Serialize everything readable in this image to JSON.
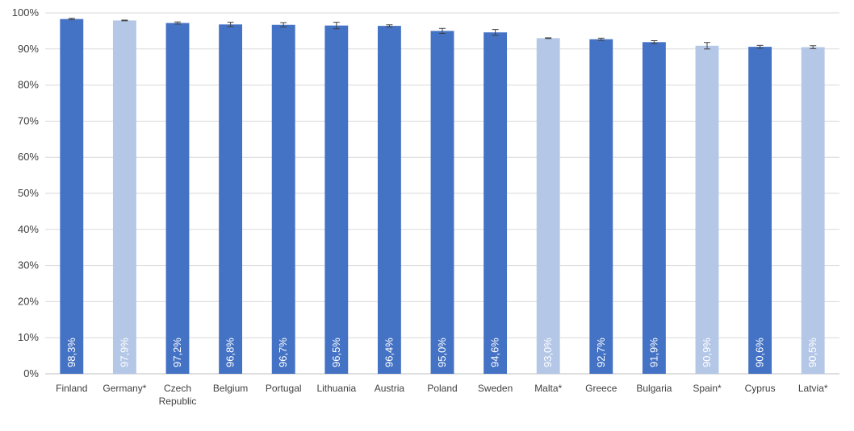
{
  "chart_data": {
    "type": "bar",
    "title": "",
    "xlabel": "",
    "ylabel": "",
    "ylim": [
      0,
      100
    ],
    "y_ticks": [
      0,
      10,
      20,
      30,
      40,
      50,
      60,
      70,
      80,
      90,
      100
    ],
    "y_tick_labels": [
      "0%",
      "10%",
      "20%",
      "30%",
      "40%",
      "50%",
      "60%",
      "70%",
      "80%",
      "90%",
      "100%"
    ],
    "grid": true,
    "legend": "none",
    "colors": {
      "standard": "#4472c4",
      "asterisk": "#b4c7e7",
      "error_bar": "#404040",
      "grid": "#d9d9d9"
    },
    "categories": [
      [
        "Finland"
      ],
      [
        "Germany*"
      ],
      [
        "Czech",
        "Republic"
      ],
      [
        "Belgium"
      ],
      [
        "Portugal"
      ],
      [
        "Lithuania"
      ],
      [
        "Austria"
      ],
      [
        "Poland"
      ],
      [
        "Sweden"
      ],
      [
        "Malta*"
      ],
      [
        "Greece"
      ],
      [
        "Bulgaria"
      ],
      [
        "Spain*"
      ],
      [
        "Cyprus"
      ],
      [
        "Latvia*"
      ]
    ],
    "values": [
      98.3,
      97.9,
      97.2,
      96.8,
      96.7,
      96.5,
      96.4,
      95.0,
      94.6,
      93.0,
      92.7,
      91.9,
      90.9,
      90.6,
      90.5
    ],
    "value_labels": [
      "98,3%",
      "97,9%",
      "97,2%",
      "96,8%",
      "96,7%",
      "96,5%",
      "96,4%",
      "95,0%",
      "94,6%",
      "93,0%",
      "92,7%",
      "91,9%",
      "90,9%",
      "90,6%",
      "90,5%"
    ],
    "error_margin": [
      0.2,
      0.1,
      0.3,
      0.6,
      0.6,
      0.9,
      0.3,
      0.7,
      0.8,
      0.1,
      0.3,
      0.4,
      0.9,
      0.4,
      0.4
    ],
    "highlight": [
      false,
      true,
      false,
      false,
      false,
      false,
      false,
      false,
      false,
      true,
      false,
      false,
      true,
      false,
      true
    ]
  }
}
